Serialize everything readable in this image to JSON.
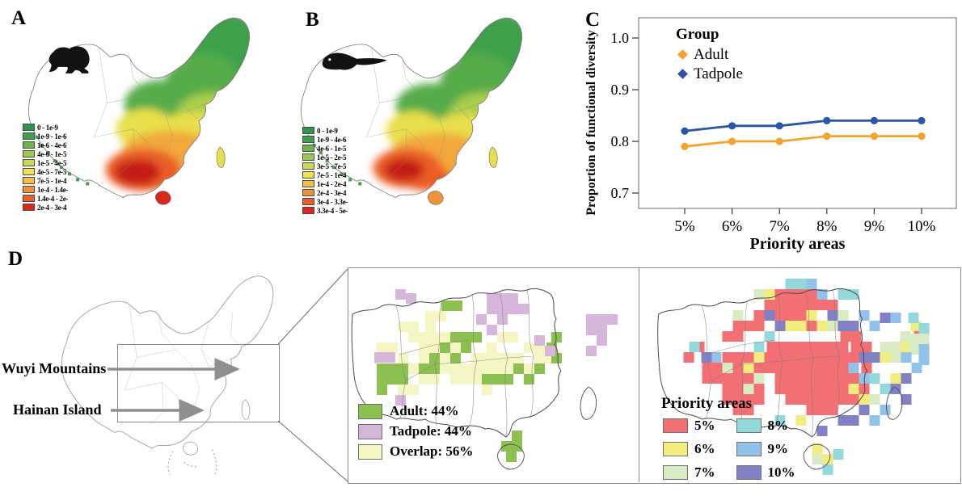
{
  "figure": {
    "panel_labels": {
      "A": "A",
      "B": "B",
      "C": "C",
      "D": "D"
    }
  },
  "panels": {
    "A": {
      "icon": "frog",
      "legend": [
        {
          "label": "0 - 1e-9",
          "color": "#2F9447"
        },
        {
          "label": "1e-9 - 1e-6",
          "color": "#3EA14B"
        },
        {
          "label": "1e-6 - 4e-6",
          "color": "#6DB44B"
        },
        {
          "label": "4e-6 - 1e-5",
          "color": "#9CC84D"
        },
        {
          "label": "1e-5 - 4e-5",
          "color": "#C9DA4E"
        },
        {
          "label": "4e-5 - 7e-5",
          "color": "#EFE24D"
        },
        {
          "label": "7e-5 - 1e-4",
          "color": "#F5BE43"
        },
        {
          "label": "1e-4 - 1.4e-",
          "color": "#F0923A"
        },
        {
          "label": "1.4e-4 - 2e-",
          "color": "#EB5E28"
        },
        {
          "label": "2e-4 - 3e-4",
          "color": "#E0251C"
        }
      ]
    },
    "B": {
      "icon": "tadpole",
      "legend": [
        {
          "label": "0 - 1e-9",
          "color": "#2F9447"
        },
        {
          "label": "1e-9 - 4e-6",
          "color": "#3EA14B"
        },
        {
          "label": "4e-6 - 1e-5",
          "color": "#6DB44B"
        },
        {
          "label": "1e-5 - 2e-5",
          "color": "#9CC84D"
        },
        {
          "label": "3e-5 - 7e-5",
          "color": "#C9DA4E"
        },
        {
          "label": "7e-5 - 1e-4",
          "color": "#EFE24D"
        },
        {
          "label": "1e-4 - 2e-4",
          "color": "#F5BE43"
        },
        {
          "label": "2e-4 - 3e-4",
          "color": "#F0923A"
        },
        {
          "label": "3e-4 - 3.3e-",
          "color": "#EB5E28"
        },
        {
          "label": "3.3e-4 - 5e-",
          "color": "#E0251C"
        }
      ]
    },
    "D": {
      "annotations": {
        "wuyi": "Wuyi Mountains",
        "hainan": "Hainan Island"
      },
      "middle_legend": {
        "items": [
          {
            "label": "Adult: 44%",
            "color": "#8CC152"
          },
          {
            "label": "Tadpole: 44%",
            "color": "#D7B6DC"
          },
          {
            "label": "Overlap: 56%",
            "color": "#F6F6C4"
          }
        ]
      },
      "priority_legend": {
        "title": "Priority areas",
        "items": [
          {
            "label": "5%",
            "color": "#F27073"
          },
          {
            "label": "6%",
            "color": "#F2ED7E"
          },
          {
            "label": "7%",
            "color": "#D8EBC2"
          },
          {
            "label": "8%",
            "color": "#93D9DC"
          },
          {
            "label": "9%",
            "color": "#92C1EA"
          },
          {
            "label": "10%",
            "color": "#8381C6"
          }
        ]
      },
      "middle_map": {
        "overlap_cells": [
          [
            62,
            67
          ],
          [
            75,
            67
          ],
          [
            88,
            80
          ],
          [
            75,
            80
          ],
          [
            101,
            80
          ],
          [
            114,
            80
          ],
          [
            88,
            93
          ],
          [
            101,
            93
          ],
          [
            49,
            93
          ],
          [
            36,
            93
          ],
          [
            62,
            106
          ],
          [
            75,
            119
          ],
          [
            88,
            106
          ],
          [
            114,
            106
          ],
          [
            127,
            119
          ],
          [
            140,
            119
          ],
          [
            153,
            119
          ],
          [
            166,
            119
          ],
          [
            179,
            119
          ],
          [
            192,
            119
          ],
          [
            205,
            106
          ],
          [
            218,
            119
          ],
          [
            231,
            106
          ],
          [
            153,
            106
          ],
          [
            166,
            106
          ],
          [
            179,
            106
          ],
          [
            192,
            106
          ],
          [
            140,
            132
          ],
          [
            127,
            132
          ],
          [
            114,
            119
          ],
          [
            101,
            132
          ],
          [
            88,
            132
          ],
          [
            75,
            145
          ],
          [
            62,
            145
          ],
          [
            153,
            132
          ],
          [
            166,
            145
          ],
          [
            218,
            93
          ],
          [
            231,
            93
          ],
          [
            244,
            106
          ],
          [
            96,
            54
          ],
          [
            109,
            54
          ],
          [
            96,
            67
          ],
          [
            185,
            80
          ],
          [
            198,
            80
          ],
          [
            172,
            93
          ],
          [
            127,
            93
          ]
        ],
        "adult_cells": [
          [
            36,
            119
          ],
          [
            49,
            119
          ],
          [
            62,
            119
          ],
          [
            49,
            132
          ],
          [
            62,
            132
          ],
          [
            36,
            132
          ],
          [
            36,
            145
          ],
          [
            88,
            119
          ],
          [
            101,
            106
          ],
          [
            114,
            93
          ],
          [
            127,
            80
          ],
          [
            140,
            93
          ],
          [
            101,
            119
          ],
          [
            127,
            106
          ],
          [
            140,
            80
          ],
          [
            153,
            80
          ],
          [
            166,
            132
          ],
          [
            179,
            132
          ],
          [
            192,
            132
          ],
          [
            205,
            119
          ],
          [
            218,
            132
          ],
          [
            246,
            93
          ],
          [
            252,
            106
          ],
          [
            231,
            119
          ],
          [
            190,
            215
          ],
          [
            203,
            215
          ],
          [
            196,
            228
          ],
          [
            203,
            202
          ],
          [
            116,
            41
          ],
          [
            129,
            41
          ],
          [
            252,
            80
          ]
        ],
        "tadpole_cells": [
          [
            172,
            32
          ],
          [
            185,
            32
          ],
          [
            198,
            32
          ],
          [
            185,
            45
          ],
          [
            172,
            45
          ],
          [
            198,
            45
          ],
          [
            211,
            45
          ],
          [
            185,
            58
          ],
          [
            172,
            71
          ],
          [
            159,
            58
          ],
          [
            295,
            58
          ],
          [
            308,
            58
          ],
          [
            308,
            71
          ],
          [
            295,
            71
          ],
          [
            308,
            84
          ],
          [
            295,
            97
          ],
          [
            321,
            58
          ],
          [
            59,
            27
          ],
          [
            46,
            105
          ],
          [
            33,
            105
          ],
          [
            59,
            158
          ],
          [
            231,
            84
          ],
          [
            244,
            97
          ],
          [
            72,
            32
          ]
        ]
      },
      "right_map": {
        "p5_rects": [
          [
            150,
            27,
            65,
            13
          ],
          [
            137,
            40,
            91,
            13
          ],
          [
            150,
            53,
            52,
            26
          ],
          [
            124,
            53,
            26,
            13
          ],
          [
            98,
            66,
            39,
            13
          ],
          [
            85,
            79,
            26,
            13
          ],
          [
            60,
            118,
            39,
            26
          ],
          [
            85,
            105,
            65,
            26
          ],
          [
            98,
            131,
            39,
            26
          ],
          [
            85,
            144,
            26,
            26
          ],
          [
            98,
            170,
            26,
            13
          ],
          [
            111,
            157,
            26,
            13
          ],
          [
            140,
            92,
            52,
            39
          ],
          [
            150,
            131,
            117,
            26
          ],
          [
            163,
            105,
            91,
            26
          ],
          [
            176,
            92,
            65,
            13
          ],
          [
            163,
            157,
            91,
            13
          ],
          [
            189,
            170,
            39,
            13
          ],
          [
            231,
            79,
            26,
            13
          ],
          [
            244,
            92,
            26,
            26
          ],
          [
            257,
            118,
            13,
            26
          ],
          [
            37,
            105,
            13,
            13
          ],
          [
            50,
            92,
            13,
            13
          ],
          [
            322,
            69,
            13,
            13
          ]
        ],
        "p6_cells": [
          [
            137,
            27
          ],
          [
            163,
            66
          ],
          [
            189,
            53
          ],
          [
            202,
            66
          ],
          [
            111,
            118
          ],
          [
            124,
            105
          ],
          [
            176,
            66
          ],
          [
            241,
            144
          ],
          [
            254,
            157
          ],
          [
            280,
            105
          ],
          [
            293,
            131
          ],
          [
            176,
            183
          ],
          [
            209,
            231
          ],
          [
            305,
            92
          ],
          [
            318,
            66
          ],
          [
            196,
            218
          ]
        ],
        "p7_cells": [
          [
            124,
            27
          ],
          [
            98,
            53
          ],
          [
            228,
            53
          ],
          [
            215,
            66
          ],
          [
            111,
            144
          ],
          [
            124,
            131
          ],
          [
            280,
            92
          ],
          [
            293,
            92
          ],
          [
            293,
            105
          ],
          [
            267,
            157
          ],
          [
            196,
            231
          ],
          [
            305,
            79
          ],
          [
            85,
            118
          ],
          [
            315,
            82
          ],
          [
            328,
            82
          ],
          [
            315,
            95
          ]
        ],
        "p8_cells": [
          [
            163,
            14
          ],
          [
            176,
            14
          ],
          [
            228,
            27
          ],
          [
            241,
            27
          ],
          [
            124,
            92
          ],
          [
            137,
            79
          ],
          [
            267,
            131
          ],
          [
            280,
            144
          ],
          [
            150,
            183
          ],
          [
            315,
            56
          ],
          [
            328,
            69
          ],
          [
            222,
            225
          ],
          [
            209,
            244
          ],
          [
            44,
            92
          ]
        ],
        "p9_cells": [
          [
            189,
            14
          ],
          [
            202,
            27
          ],
          [
            254,
            53
          ],
          [
            267,
            66
          ],
          [
            306,
            105
          ],
          [
            319,
            118
          ],
          [
            280,
            170
          ],
          [
            267,
            183
          ],
          [
            293,
            56
          ],
          [
            328,
            95
          ],
          [
            71,
            105
          ],
          [
            254,
            131
          ],
          [
            241,
            118
          ],
          [
            328,
            108
          ]
        ],
        "p10_cells": [
          [
            215,
            53
          ],
          [
            228,
            66
          ],
          [
            150,
            66
          ],
          [
            137,
            53
          ],
          [
            254,
            105
          ],
          [
            267,
            105
          ],
          [
            241,
            66
          ],
          [
            293,
            144
          ],
          [
            306,
            157
          ],
          [
            254,
            170
          ],
          [
            228,
            183
          ],
          [
            59,
            105
          ],
          [
            306,
            131
          ],
          [
            280,
            56
          ],
          [
            241,
            183
          ],
          [
            202,
            196
          ]
        ]
      }
    }
  },
  "chart_data": {
    "type": "line",
    "title": "",
    "categories": [
      "5%",
      "6%",
      "7%",
      "8%",
      "9%",
      "10%"
    ],
    "series": [
      {
        "name": "Adult",
        "color": "#F4A428",
        "values": [
          0.79,
          0.8,
          0.8,
          0.81,
          0.81,
          0.81
        ]
      },
      {
        "name": "Tadpole",
        "color": "#2B55A8",
        "values": [
          0.82,
          0.83,
          0.83,
          0.84,
          0.84,
          0.84
        ]
      }
    ],
    "xlabel": "Priority areas",
    "ylabel": "Proportion of functional diversity",
    "ylim": [
      0.7,
      1.05
    ],
    "yticks": [
      0.7,
      0.8,
      0.9,
      1.0
    ],
    "legend_title": "Group",
    "legend_position": "top-left",
    "grid": false
  }
}
